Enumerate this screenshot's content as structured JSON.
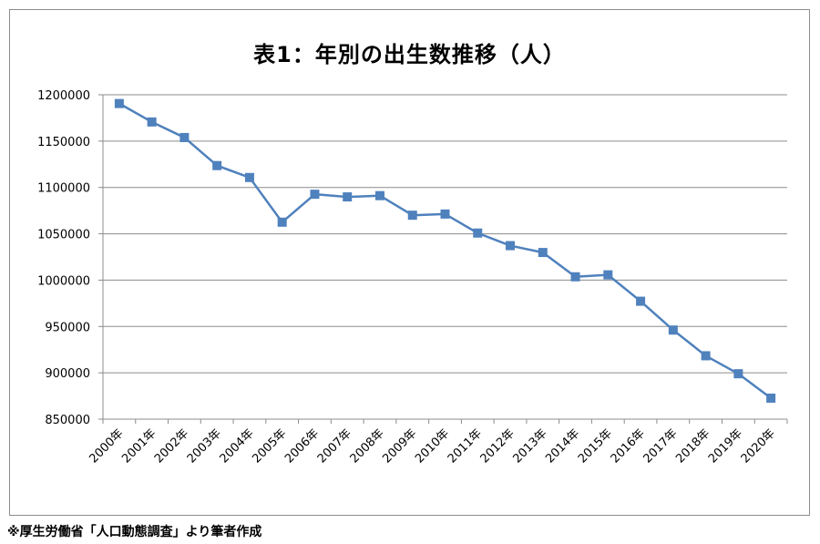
{
  "source_note": "※厚生労働省「人口動態調査」より筆者作成",
  "chart_data": {
    "type": "line",
    "title": "表1：年別の出生数推移（人）",
    "xlabel": "",
    "ylabel": "",
    "categories": [
      "2000年",
      "2001年",
      "2002年",
      "2003年",
      "2004年",
      "2005年",
      "2006年",
      "2007年",
      "2008年",
      "2009年",
      "2010年",
      "2011年",
      "2012年",
      "2013年",
      "2014年",
      "2015年",
      "2016年",
      "2017年",
      "2018年",
      "2019年",
      "2020年"
    ],
    "series": [
      {
        "values": [
          1190547,
          1170662,
          1153855,
          1123610,
          1110721,
          1062530,
          1092674,
          1089818,
          1091156,
          1070036,
          1071305,
          1050807,
          1037232,
          1029817,
          1003609,
          1005721,
          977242,
          946146,
          918400,
          899000,
          872683
        ],
        "color": "#4f81bd"
      }
    ],
    "yticks": [
      "850000",
      "900000",
      "950000",
      "1000000",
      "1050000",
      "1100000",
      "1150000",
      "1200000"
    ],
    "ylim": [
      850000,
      1200000
    ],
    "grid": true,
    "legend": "none"
  }
}
